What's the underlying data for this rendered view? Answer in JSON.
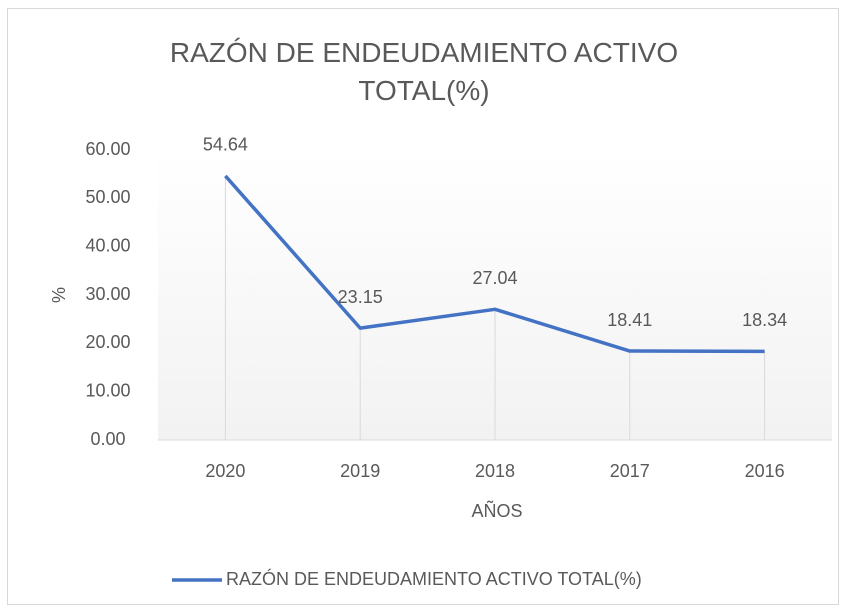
{
  "chart_data": {
    "type": "line",
    "title": "RAZÓN DE ENDEUDAMIENTO ACTIVO TOTAL(%)",
    "x_label": "AÑOS",
    "y_label": "%",
    "categories": [
      "2020",
      "2019",
      "2018",
      "2017",
      "2016"
    ],
    "series": [
      {
        "name": "RAZÓN DE ENDEUDAMIENTO ACTIVO TOTAL(%)",
        "color": "#4472c4",
        "values": [
          54.64,
          23.15,
          27.04,
          18.41,
          18.34
        ]
      }
    ],
    "ylim": [
      0,
      60
    ],
    "yticks": [
      {
        "value": 0,
        "label": "0.00"
      },
      {
        "value": 10,
        "label": "10.00"
      },
      {
        "value": 20,
        "label": "20.00"
      },
      {
        "value": 30,
        "label": "30.00"
      },
      {
        "value": 40,
        "label": "40.00"
      },
      {
        "value": 50,
        "label": "50.00"
      },
      {
        "value": 60,
        "label": "60.00"
      }
    ],
    "grid": false,
    "drop_lines": true,
    "data_labels": true,
    "legend": "bottom"
  }
}
